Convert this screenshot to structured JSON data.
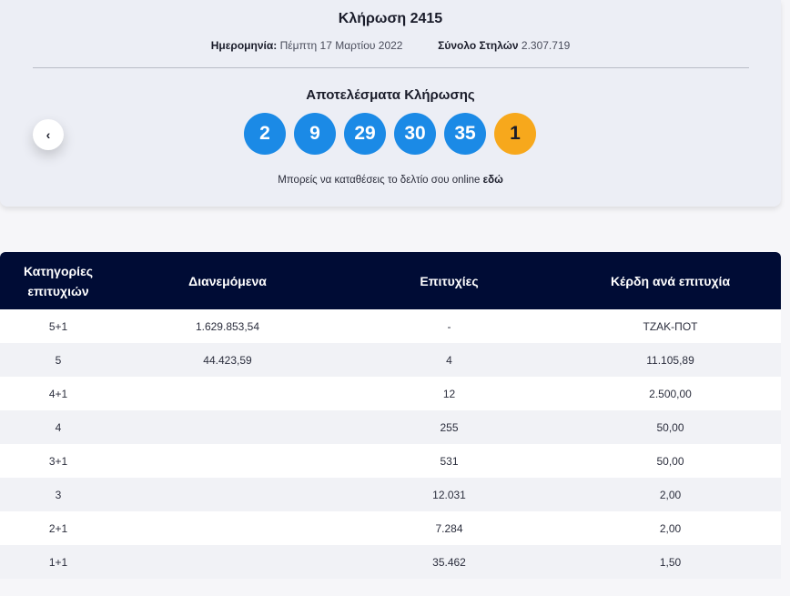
{
  "draw": {
    "title": "Κλήρωση 2415",
    "date_label": "Ημερομηνία:",
    "date_value": "Πέμπτη 17 Μαρτίου 2022",
    "columns_label": "Σύνολο Στηλών",
    "columns_value": "2.307.719"
  },
  "results": {
    "title": "Αποτελέσματα Κλήρωσης",
    "numbers": [
      "2",
      "9",
      "29",
      "30",
      "35"
    ],
    "joker": "1",
    "online_text": "Μπορείς να καταθέσεις το δελτίο σου online ",
    "online_link": "εδώ"
  },
  "navigation": {
    "prev_icon": "chevron-left-icon",
    "prev_glyph": "‹"
  },
  "colors": {
    "ball_blue": "#1b8ae6",
    "joker_orange": "#f7a81c",
    "table_header": "#000c35"
  },
  "table": {
    "headers": {
      "category_line1": "Κατηγορίες",
      "category_line2": "επιτυχιών",
      "distributed": "Διανεμόμενα",
      "winners": "Επιτυχίες",
      "prize": "Κέρδη ανά επιτυχία"
    },
    "rows": [
      {
        "category": "5+1",
        "distributed": "1.629.853,54",
        "winners": "-",
        "prize": "ΤΖΑΚ-ΠΟΤ"
      },
      {
        "category": "5",
        "distributed": "44.423,59",
        "winners": "4",
        "prize": "11.105,89"
      },
      {
        "category": "4+1",
        "distributed": "",
        "winners": "12",
        "prize": "2.500,00"
      },
      {
        "category": "4",
        "distributed": "",
        "winners": "255",
        "prize": "50,00"
      },
      {
        "category": "3+1",
        "distributed": "",
        "winners": "531",
        "prize": "50,00"
      },
      {
        "category": "3",
        "distributed": "",
        "winners": "12.031",
        "prize": "2,00"
      },
      {
        "category": "2+1",
        "distributed": "",
        "winners": "7.284",
        "prize": "2,00"
      },
      {
        "category": "1+1",
        "distributed": "",
        "winners": "35.462",
        "prize": "1,50"
      }
    ]
  }
}
